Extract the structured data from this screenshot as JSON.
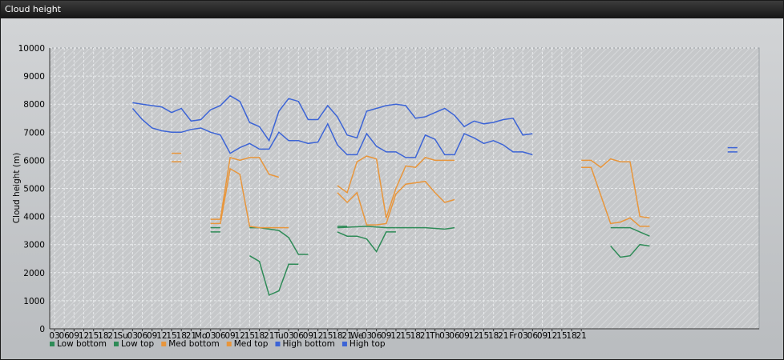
{
  "window": {
    "title": "Cloud height"
  },
  "chart_data": {
    "type": "line",
    "ylabel": "Cloud height (m)",
    "ylim": [
      0,
      10000
    ],
    "yticks": [
      0,
      1000,
      2000,
      3000,
      4000,
      5000,
      6000,
      7000,
      8000,
      9000,
      10000
    ],
    "x_unit": "hours",
    "x_range": [
      0,
      210
    ],
    "x_tick_labels": [
      "03",
      "06",
      "09",
      "12",
      "15",
      "18",
      "21",
      "Su",
      "03",
      "06",
      "09",
      "12",
      "15",
      "18",
      "21",
      "Mo",
      "03",
      "06",
      "09",
      "12",
      "15",
      "18",
      "21",
      "Tu",
      "03",
      "06",
      "09",
      "12",
      "15",
      "18",
      "21",
      "We",
      "03",
      "06",
      "09",
      "12",
      "15",
      "18",
      "21",
      "Th",
      "03",
      "06",
      "09",
      "12",
      "15",
      "18",
      "21",
      "Fr",
      "03",
      "06",
      "09",
      "12",
      "15",
      "18",
      "21"
    ],
    "grid": true,
    "legend_position": "bottom",
    "colors": {
      "low_bottom": "#2e8b57",
      "low_top": "#2e8b57",
      "med_bottom": "#e8963c",
      "med_top": "#e8963c",
      "high_bottom": "#3c64d6",
      "high_top": "#3c64d6"
    },
    "series": [
      {
        "name": "Low bottom",
        "key": "low_bottom",
        "segments": [
          [
            [
              48,
              3450
            ],
            [
              51,
              3450
            ]
          ],
          [
            [
              87,
              3650
            ],
            [
              90,
              3650
            ]
          ],
          [
            [
              105,
              3600
            ],
            [
              114,
              3600
            ],
            [
              120,
              3550
            ],
            [
              123,
              3600
            ]
          ]
        ]
      },
      {
        "name": "Low top",
        "key": "low_top",
        "segments": [
          [
            [
              48,
              3600
            ],
            [
              51,
              3600
            ]
          ],
          [
            [
              60,
              3600
            ],
            [
              63,
              3600
            ],
            [
              69,
              3500
            ],
            [
              72,
              3250
            ],
            [
              75,
              2650
            ],
            [
              78,
              2650
            ]
          ],
          [
            [
              60,
              2600
            ],
            [
              63,
              2400
            ],
            [
              66,
              1200
            ],
            [
              69,
              1350
            ],
            [
              72,
              2300
            ],
            [
              75,
              2300
            ]
          ],
          [
            [
              87,
              3450
            ],
            [
              90,
              3300
            ],
            [
              93,
              3300
            ],
            [
              96,
              3200
            ],
            [
              99,
              2750
            ],
            [
              102,
              3450
            ],
            [
              105,
              3450
            ]
          ],
          [
            [
              87,
              3600
            ],
            [
              96,
              3650
            ],
            [
              102,
              3600
            ],
            [
              105,
              3600
            ]
          ],
          [
            [
              171,
              2950
            ],
            [
              174,
              2550
            ],
            [
              177,
              2600
            ],
            [
              180,
              3000
            ],
            [
              183,
              2950
            ]
          ],
          [
            [
              171,
              3600
            ],
            [
              177,
              3600
            ],
            [
              180,
              3450
            ],
            [
              183,
              3300
            ]
          ]
        ]
      },
      {
        "name": "Med bottom",
        "key": "med_bottom",
        "segments": [
          [
            [
              36,
              5950
            ],
            [
              39,
              5950
            ]
          ],
          [
            [
              48,
              3750
            ],
            [
              51,
              3750
            ],
            [
              54,
              5700
            ],
            [
              57,
              5500
            ],
            [
              60,
              3650
            ],
            [
              63,
              3600
            ],
            [
              66,
              3600
            ],
            [
              69,
              3600
            ],
            [
              72,
              3600
            ]
          ],
          [
            [
              87,
              4850
            ],
            [
              90,
              4500
            ],
            [
              93,
              4850
            ],
            [
              96,
              3700
            ],
            [
              99,
              3700
            ],
            [
              102,
              3750
            ],
            [
              105,
              4800
            ],
            [
              108,
              5150
            ],
            [
              111,
              5200
            ],
            [
              114,
              5250
            ],
            [
              117,
              4850
            ],
            [
              120,
              4500
            ],
            [
              123,
              4600
            ]
          ],
          [
            [
              162,
              5750
            ],
            [
              165,
              5750
            ],
            [
              168,
              4750
            ],
            [
              171,
              3750
            ],
            [
              174,
              3800
            ],
            [
              177,
              3950
            ],
            [
              180,
              3650
            ],
            [
              183,
              3650
            ]
          ]
        ]
      },
      {
        "name": "Med top",
        "key": "med_top",
        "segments": [
          [
            [
              36,
              6250
            ],
            [
              39,
              6250
            ]
          ],
          [
            [
              48,
              3900
            ],
            [
              51,
              3900
            ],
            [
              54,
              6100
            ],
            [
              57,
              6000
            ],
            [
              60,
              6100
            ],
            [
              63,
              6100
            ],
            [
              66,
              5500
            ],
            [
              69,
              5400
            ]
          ],
          [
            [
              87,
              5100
            ],
            [
              90,
              4850
            ],
            [
              93,
              5950
            ],
            [
              96,
              6150
            ],
            [
              99,
              6050
            ],
            [
              102,
              3950
            ],
            [
              105,
              5000
            ],
            [
              108,
              5800
            ],
            [
              111,
              5750
            ],
            [
              114,
              6100
            ],
            [
              117,
              6000
            ],
            [
              120,
              6000
            ],
            [
              123,
              6000
            ]
          ],
          [
            [
              162,
              6000
            ],
            [
              165,
              6000
            ],
            [
              168,
              5750
            ],
            [
              171,
              6050
            ],
            [
              174,
              5950
            ],
            [
              177,
              5950
            ],
            [
              180,
              4000
            ],
            [
              183,
              3950
            ]
          ]
        ]
      },
      {
        "name": "High bottom",
        "key": "high_bottom",
        "segments": [
          [
            [
              24,
              7850
            ],
            [
              27,
              7450
            ],
            [
              30,
              7150
            ],
            [
              33,
              7050
            ],
            [
              36,
              7000
            ],
            [
              39,
              7000
            ],
            [
              42,
              7100
            ],
            [
              45,
              7150
            ],
            [
              48,
              7000
            ],
            [
              51,
              6900
            ],
            [
              54,
              6250
            ],
            [
              57,
              6450
            ],
            [
              60,
              6600
            ],
            [
              63,
              6400
            ],
            [
              66,
              6400
            ],
            [
              69,
              7000
            ],
            [
              72,
              6700
            ],
            [
              75,
              6700
            ],
            [
              78,
              6600
            ],
            [
              81,
              6650
            ],
            [
              84,
              7300
            ],
            [
              87,
              6550
            ],
            [
              90,
              6200
            ],
            [
              93,
              6200
            ],
            [
              96,
              6950
            ],
            [
              99,
              6500
            ],
            [
              102,
              6300
            ],
            [
              105,
              6300
            ],
            [
              108,
              6100
            ],
            [
              111,
              6100
            ],
            [
              114,
              6900
            ],
            [
              117,
              6750
            ],
            [
              120,
              6200
            ],
            [
              123,
              6200
            ],
            [
              126,
              6950
            ],
            [
              129,
              6800
            ],
            [
              132,
              6600
            ],
            [
              135,
              6700
            ],
            [
              138,
              6550
            ],
            [
              141,
              6300
            ],
            [
              144,
              6300
            ],
            [
              147,
              6200
            ]
          ],
          [
            [
              207,
              6300
            ],
            [
              210,
              6300
            ]
          ]
        ]
      },
      {
        "name": "High top",
        "key": "high_top",
        "segments": [
          [
            [
              24,
              8050
            ],
            [
              27,
              8000
            ],
            [
              30,
              7950
            ],
            [
              33,
              7900
            ],
            [
              36,
              7700
            ],
            [
              39,
              7850
            ],
            [
              42,
              7400
            ],
            [
              45,
              7450
            ],
            [
              48,
              7800
            ],
            [
              51,
              7950
            ],
            [
              54,
              8300
            ],
            [
              57,
              8100
            ],
            [
              60,
              7350
            ],
            [
              63,
              7200
            ],
            [
              66,
              6700
            ],
            [
              69,
              7750
            ],
            [
              72,
              8200
            ],
            [
              75,
              8100
            ],
            [
              78,
              7450
            ],
            [
              81,
              7450
            ],
            [
              84,
              7950
            ],
            [
              87,
              7550
            ],
            [
              90,
              6900
            ],
            [
              93,
              6800
            ],
            [
              96,
              7750
            ],
            [
              99,
              7850
            ],
            [
              102,
              7950
            ],
            [
              105,
              8000
            ],
            [
              108,
              7950
            ],
            [
              111,
              7500
            ],
            [
              114,
              7550
            ],
            [
              117,
              7700
            ],
            [
              120,
              7850
            ],
            [
              123,
              7600
            ],
            [
              126,
              7200
            ],
            [
              129,
              7400
            ],
            [
              132,
              7300
            ],
            [
              135,
              7350
            ],
            [
              138,
              7450
            ],
            [
              141,
              7500
            ],
            [
              144,
              6900
            ],
            [
              147,
              6950
            ]
          ],
          [
            [
              207,
              6450
            ],
            [
              210,
              6450
            ]
          ]
        ]
      }
    ]
  }
}
